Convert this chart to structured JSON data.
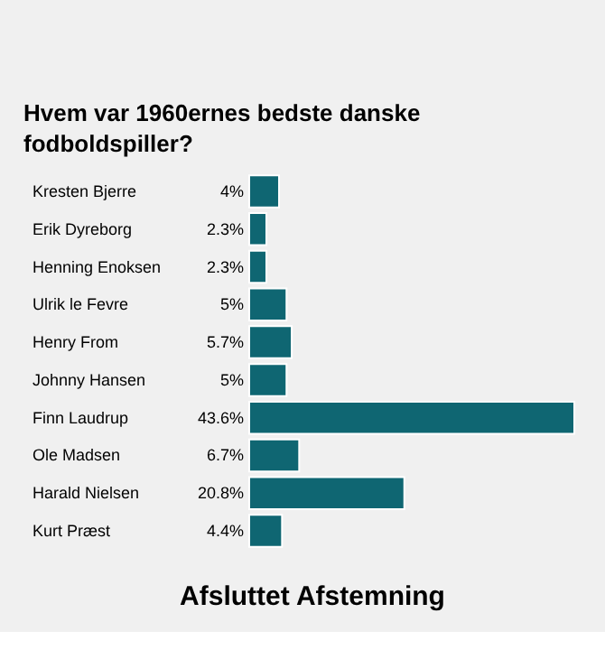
{
  "chart_data": {
    "type": "bar",
    "orientation": "horizontal",
    "title": [
      "Hvem var 1960ernes bedste danske",
      "fodboldspiller?"
    ],
    "categories": [
      "Kresten Bjerre",
      "Erik Dyreborg",
      "Henning Enoksen",
      "Ulrik le Fevre",
      "Henry From",
      "Johnny Hansen",
      "Finn Laudrup",
      "Ole Madsen",
      "Harald Nielsen",
      "Kurt Præst"
    ],
    "values": [
      4,
      2.3,
      2.3,
      5,
      5.7,
      5,
      43.6,
      6.7,
      20.8,
      4.4
    ],
    "value_labels": [
      "4%",
      "2.3%",
      "2.3%",
      "5%",
      "5.7%",
      "5%",
      "43.6%",
      "6.7%",
      "20.8%",
      "4.4%"
    ],
    "color": "#0f6672",
    "grid": false,
    "annotations": [
      "Afsluttet Afstemning"
    ]
  }
}
